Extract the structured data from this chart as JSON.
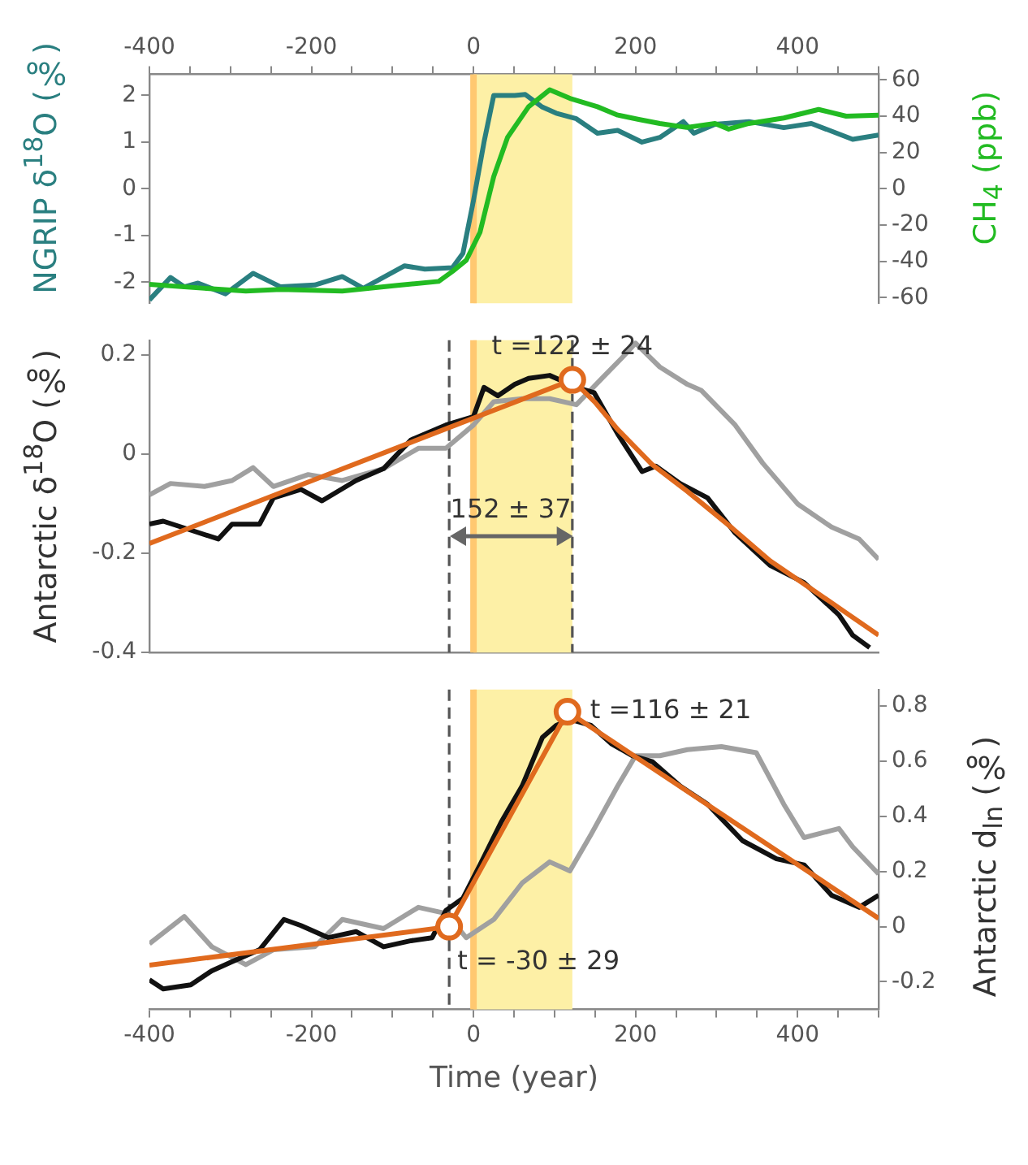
{
  "chart_data": [
    {
      "type": "line",
      "ylabel": "NGRIP δ$^{18}$O (‰)",
      "y2label": "CH$_{4}$ (ppb)",
      "marker": "none",
      "xlim": [
        -400,
        500
      ],
      "xticks": [
        -400,
        {
          "value": -350,
          "label": null
        },
        {
          "value": -300,
          "label": null
        },
        {
          "value": -250,
          "label": null
        },
        -200,
        {
          "value": -150,
          "label": null
        },
        {
          "value": -100,
          "label": null
        },
        {
          "value": -50,
          "label": null
        },
        0,
        {
          "value": 50,
          "label": null
        },
        {
          "value": 100,
          "label": null
        },
        {
          "value": 150,
          "label": null
        },
        200,
        {
          "value": 250,
          "label": null
        },
        {
          "value": 300,
          "label": null
        },
        {
          "value": 350,
          "label": null
        },
        400,
        {
          "value": 450,
          "label": null
        },
        {
          "value": 500,
          "label": null
        }
      ],
      "ylim": [
        -2.45,
        2.45
      ],
      "yticks": [
        -2,
        -1,
        0,
        1,
        2
      ],
      "y2lim": [
        -63,
        63
      ],
      "y2ticks": [
        -60,
        -40,
        -20,
        0,
        20,
        40,
        60
      ],
      "bands": [
        {
          "axis": "x",
          "from": 0,
          "to": 122,
          "color": "#fdf0a6"
        }
      ],
      "ref_lines": [
        {
          "axis": "x",
          "value": 0,
          "color": "#ffc870"
        }
      ],
      "series": [
        {
          "color": "#2a7f80",
          "x": [
            -400,
            -374,
            -357,
            -340,
            -306,
            -272,
            -238,
            -196,
            -162,
            -136,
            -85,
            -60,
            -26,
            -13,
            0,
            13,
            25,
            51,
            64,
            85,
            102,
            127,
            153,
            178,
            208,
            230,
            259,
            272,
            298,
            340,
            383,
            417,
            468,
            500
          ],
          "values": [
            -2.38,
            -1.9,
            -2.1,
            -2.02,
            -2.25,
            -1.81,
            -2.1,
            -2.06,
            -1.88,
            -2.13,
            -1.65,
            -1.72,
            -1.69,
            -1.38,
            -0.25,
            1.0,
            2.0,
            2.0,
            2.02,
            1.75,
            1.62,
            1.5,
            1.19,
            1.25,
            1.0,
            1.1,
            1.44,
            1.19,
            1.38,
            1.44,
            1.31,
            1.4,
            1.06,
            1.15
          ]
        },
        {
          "color": "#22bb22",
          "axis": "y2",
          "x": [
            -400,
            -332,
            -281,
            -238,
            -162,
            -94,
            -43,
            -26,
            -9,
            8,
            25,
            42,
            68,
            94,
            119,
            153,
            178,
            204,
            230,
            263,
            298,
            315,
            340,
            383,
            426,
            460,
            500
          ],
          "values": [
            -52.6,
            -54.8,
            -56.3,
            -55.4,
            -56.3,
            -53.2,
            -51,
            -45.5,
            -39.4,
            -24,
            6.8,
            28.3,
            45.2,
            54.5,
            49.8,
            45.2,
            40.6,
            38.2,
            36,
            33.8,
            36,
            32.9,
            36,
            39,
            43.7,
            40,
            40.6
          ]
        }
      ]
    },
    {
      "type": "line",
      "ylabel": "Antarctic δ$^{18}$O (‰)",
      "marker": "none",
      "tick_labels": "y",
      "xlim": [
        -400,
        500
      ],
      "ylim": [
        -0.4,
        0.23
      ],
      "yticks": [
        -0.4,
        -0.2,
        0,
        0.2
      ],
      "bands": [
        {
          "axis": "x",
          "from": 0,
          "to": 122,
          "color": "#fdf0a6"
        }
      ],
      "ref_lines": [
        {
          "axis": "x",
          "value": 0,
          "color": "#ffc870"
        },
        {
          "axis": "x",
          "value": -30,
          "color": "#555555",
          "line_style": "dashed"
        },
        {
          "axis": "x",
          "value": 122,
          "color": "#555555",
          "line_style": "dashed"
        }
      ],
      "annotations": [
        "t =122 ± 24",
        "152 ± 37"
      ],
      "series": [
        {
          "color": "#a0a0a0",
          "x": [
            -400,
            -374,
            -332,
            -298,
            -272,
            -247,
            -204,
            -162,
            -111,
            -68,
            -34,
            0,
            25,
            60,
            94,
            127,
            162,
            183,
            200,
            230,
            264,
            281,
            323,
            357,
            400,
            442,
            476,
            500
          ],
          "values": [
            -0.082,
            -0.059,
            -0.065,
            -0.053,
            -0.027,
            -0.065,
            -0.041,
            -0.053,
            -0.029,
            0.012,
            0.012,
            0.059,
            0.106,
            0.112,
            0.112,
            0.1,
            0.159,
            0.194,
            0.224,
            0.176,
            0.141,
            0.129,
            0.059,
            -0.018,
            -0.1,
            -0.147,
            -0.171,
            -0.212
          ]
        },
        {
          "color": "#111111",
          "x": [
            -400,
            -383,
            -349,
            -315,
            -298,
            -264,
            -247,
            -213,
            -187,
            -145,
            -111,
            -77,
            -34,
            0,
            13,
            30,
            51,
            68,
            94,
            111,
            127,
            149,
            178,
            208,
            225,
            255,
            289,
            323,
            366,
            408,
            451,
            468,
            489
          ],
          "values": [
            -0.141,
            -0.135,
            -0.153,
            -0.171,
            -0.141,
            -0.141,
            -0.088,
            -0.071,
            -0.094,
            -0.053,
            -0.029,
            0.029,
            0.059,
            0.076,
            0.135,
            0.118,
            0.141,
            0.153,
            0.159,
            0.147,
            0.135,
            0.124,
            0.041,
            -0.035,
            -0.024,
            -0.059,
            -0.088,
            -0.159,
            -0.224,
            -0.259,
            -0.324,
            -0.365,
            -0.39
          ]
        },
        {
          "color": "#e06a1e",
          "x": [
            -400,
            122,
            150,
            178,
            220,
            264,
            320,
            366,
            420,
            460,
            500
          ],
          "values": [
            -0.18,
            0.15,
            0.105,
            0.05,
            -0.02,
            -0.075,
            -0.15,
            -0.215,
            -0.275,
            -0.32,
            -0.365
          ]
        },
        {
          "type": "scatter",
          "marker": "circle",
          "color": "#e06a1e",
          "x": [
            122
          ],
          "values": [
            0.15
          ]
        }
      ]
    },
    {
      "type": "line",
      "y2label": "Antarctic d$_{ln}$ (‰)",
      "xlabel": "Time (year)",
      "marker": "none",
      "xlim": [
        -400,
        500
      ],
      "xticks": [
        -400,
        {
          "value": -350,
          "label": null
        },
        {
          "value": -300,
          "label": null
        },
        {
          "value": -250,
          "label": null
        },
        -200,
        {
          "value": -150,
          "label": null
        },
        {
          "value": -100,
          "label": null
        },
        {
          "value": -50,
          "label": null
        },
        0,
        {
          "value": 50,
          "label": null
        },
        {
          "value": 100,
          "label": null
        },
        {
          "value": 150,
          "label": null
        },
        200,
        {
          "value": 250,
          "label": null
        },
        {
          "value": 300,
          "label": null
        },
        {
          "value": 350,
          "label": null
        },
        400,
        {
          "value": 450,
          "label": null
        },
        {
          "value": 500,
          "label": null
        }
      ],
      "y2lim": [
        -0.3,
        0.86
      ],
      "y2ticks": [
        -0.2,
        0,
        0.2,
        0.4,
        0.6,
        0.8
      ],
      "bands": [
        {
          "axis": "x",
          "from": 0,
          "to": 122,
          "color": "#fdf0a6"
        }
      ],
      "ref_lines": [
        {
          "axis": "x",
          "value": 0,
          "color": "#ffc870"
        },
        {
          "axis": "x",
          "value": -30,
          "color": "#555555",
          "line_style": "dashed"
        }
      ],
      "annotations": [
        "t =116 ± 21",
        "t = -30 ± 29"
      ],
      "series": [
        {
          "color": "#a0a0a0",
          "axis": "y2",
          "x": [
            -400,
            -357,
            -323,
            -281,
            -247,
            -196,
            -162,
            -111,
            -68,
            -34,
            -9,
            25,
            60,
            94,
            119,
            145,
            178,
            200,
            230,
            264,
            306,
            349,
            383,
            408,
            451,
            468,
            500
          ],
          "values": [
            -0.062,
            0.037,
            -0.073,
            -0.138,
            -0.084,
            -0.073,
            0.026,
            -0.007,
            0.07,
            0.048,
            -0.04,
            0.026,
            0.158,
            0.235,
            0.202,
            0.334,
            0.51,
            0.62,
            0.62,
            0.642,
            0.653,
            0.631,
            0.444,
            0.323,
            0.356,
            0.29,
            0.191
          ]
        },
        {
          "color": "#111111",
          "axis": "y2",
          "x": [
            -400,
            -383,
            -349,
            -323,
            -298,
            -264,
            -234,
            -213,
            -179,
            -145,
            -111,
            -77,
            -51,
            -34,
            -13,
            8,
            34,
            60,
            85,
            102,
            119,
            145,
            170,
            196,
            221,
            255,
            289,
            332,
            374,
            408,
            442,
            476,
            500
          ],
          "values": [
            -0.193,
            -0.226,
            -0.211,
            -0.16,
            -0.127,
            -0.084,
            0.026,
            0.004,
            -0.04,
            -0.018,
            -0.073,
            -0.051,
            -0.04,
            0.059,
            0.103,
            0.224,
            0.378,
            0.51,
            0.686,
            0.73,
            0.752,
            0.73,
            0.664,
            0.62,
            0.598,
            0.51,
            0.444,
            0.312,
            0.246,
            0.224,
            0.114,
            0.07,
            0.114
          ]
        },
        {
          "color": "#e06a1e",
          "axis": "y2",
          "x": [
            -400,
            -30,
            116,
            500
          ],
          "values": [
            -0.14,
            0,
            0.78,
            0.03
          ]
        },
        {
          "type": "scatter",
          "marker": "circle",
          "axis": "y2",
          "color": "#e06a1e",
          "x": [
            -30,
            116
          ],
          "values": [
            0,
            0.78
          ]
        }
      ]
    }
  ]
}
